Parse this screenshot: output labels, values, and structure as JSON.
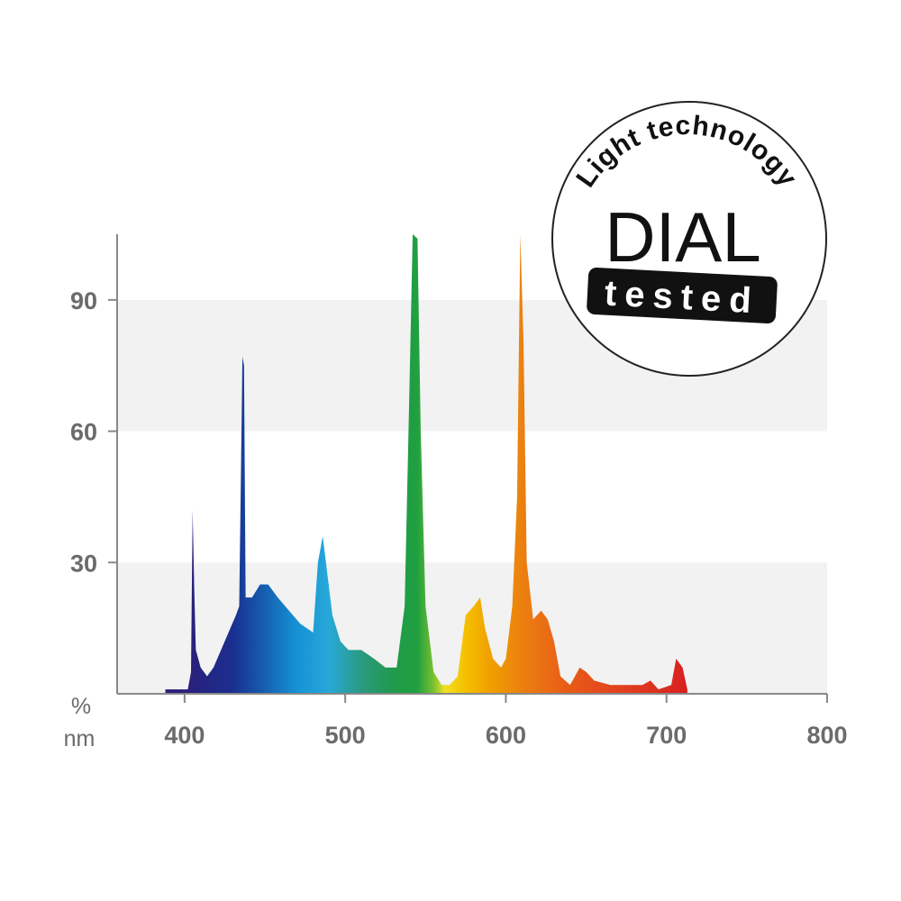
{
  "chart_data": {
    "type": "area",
    "y_label": "%",
    "x_label": "nm",
    "x": [
      388,
      395,
      402,
      404,
      405,
      406,
      407,
      410,
      414,
      418,
      425,
      432,
      434,
      435,
      436,
      437,
      438,
      442,
      447,
      452,
      458,
      465,
      472,
      480,
      483,
      486,
      488,
      492,
      497,
      502,
      510,
      518,
      525,
      532,
      537,
      540,
      542,
      545,
      547,
      550,
      555,
      560,
      565,
      570,
      575,
      580,
      584,
      587,
      592,
      597,
      600,
      604,
      607,
      609,
      611,
      613,
      617,
      622,
      626,
      630,
      634,
      640,
      646,
      650,
      655,
      665,
      675,
      685,
      690,
      695,
      703,
      706,
      708,
      710,
      713
    ],
    "values": [
      1,
      1,
      1,
      5,
      42,
      24,
      10,
      6,
      4,
      6,
      12,
      18,
      20,
      48,
      77,
      75,
      22,
      22,
      25,
      25,
      22,
      19,
      16,
      14,
      30,
      36,
      30,
      18,
      12,
      10,
      10,
      8,
      6,
      6,
      20,
      70,
      105,
      104,
      60,
      20,
      5,
      2,
      2,
      4,
      18,
      20,
      22,
      15,
      8,
      6,
      8,
      20,
      45,
      105,
      80,
      30,
      17,
      19,
      17,
      12,
      4,
      2,
      6,
      5,
      3,
      2,
      2,
      2,
      3,
      1,
      2,
      8,
      7,
      6,
      1
    ],
    "gradient": [
      {
        "x": 400,
        "color": "#2b1f7a"
      },
      {
        "x": 430,
        "color": "#1a2f8f"
      },
      {
        "x": 450,
        "color": "#1560b0"
      },
      {
        "x": 470,
        "color": "#1592d6"
      },
      {
        "x": 490,
        "color": "#28a8d8"
      },
      {
        "x": 510,
        "color": "#2a9a80"
      },
      {
        "x": 530,
        "color": "#1f9a4a"
      },
      {
        "x": 545,
        "color": "#20a040"
      },
      {
        "x": 555,
        "color": "#7ac030"
      },
      {
        "x": 562,
        "color": "#f0e020"
      },
      {
        "x": 575,
        "color": "#f5c000"
      },
      {
        "x": 590,
        "color": "#f0a000"
      },
      {
        "x": 610,
        "color": "#ec8010"
      },
      {
        "x": 640,
        "color": "#e85a18"
      },
      {
        "x": 680,
        "color": "#e03a20"
      },
      {
        "x": 713,
        "color": "#d82020"
      }
    ],
    "xlim": [
      358,
      800
    ],
    "xticks": [
      400,
      500,
      600,
      700,
      800
    ],
    "ylim": [
      0,
      105
    ],
    "yticks": [
      30,
      60,
      90
    ],
    "grid": "bands",
    "band_color": "#f2f2f2"
  },
  "badge": {
    "arc_text": "Light technology",
    "brand": "DIAL",
    "stamp": "tested"
  }
}
